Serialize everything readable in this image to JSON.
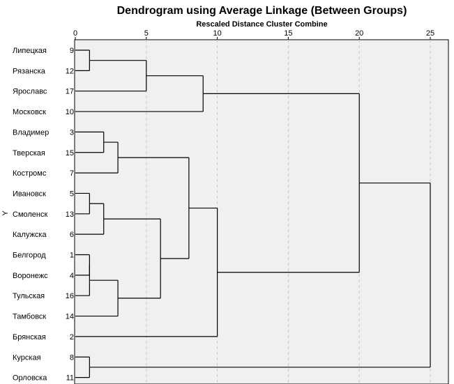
{
  "chart_data": {
    "type": "dendrogram",
    "title": "Dendrogram using Average Linkage (Between Groups)",
    "xlabel": "Rescaled Distance Cluster Combine",
    "ylabel": "Y",
    "xlim": [
      0,
      25
    ],
    "xticks": [
      0,
      5,
      10,
      15,
      20,
      25
    ],
    "grid": true,
    "background": "#f0f0f0",
    "leaves": [
      {
        "name": "Липецкая",
        "id": "9"
      },
      {
        "name": "Рязанска",
        "id": "12"
      },
      {
        "name": "Ярославс",
        "id": "17"
      },
      {
        "name": "Московск",
        "id": "10"
      },
      {
        "name": "Владимер",
        "id": "3"
      },
      {
        "name": "Тверская",
        "id": "15"
      },
      {
        "name": "Костромс",
        "id": "7"
      },
      {
        "name": "Ивановск",
        "id": "5"
      },
      {
        "name": "Смоленск",
        "id": "13"
      },
      {
        "name": "Калужска",
        "id": "6"
      },
      {
        "name": "Белгород",
        "id": "1"
      },
      {
        "name": "Воронежс",
        "id": "4"
      },
      {
        "name": "Тульская",
        "id": "16"
      },
      {
        "name": "Тамбовск",
        "id": "14"
      },
      {
        "name": "Брянская",
        "id": "2"
      },
      {
        "name": "Курская",
        "id": "8"
      },
      {
        "name": "Орловска",
        "id": "11"
      }
    ],
    "merges": [
      {
        "children": [
          "L0",
          "L1"
        ],
        "distance": 1
      },
      {
        "children": [
          "N0",
          "L2"
        ],
        "distance": 5
      },
      {
        "children": [
          "N1",
          "L3"
        ],
        "distance": 9
      },
      {
        "children": [
          "L4",
          "L5"
        ],
        "distance": 2
      },
      {
        "children": [
          "N3",
          "L6"
        ],
        "distance": 3
      },
      {
        "children": [
          "L7",
          "L8"
        ],
        "distance": 1
      },
      {
        "children": [
          "N5",
          "L9"
        ],
        "distance": 2
      },
      {
        "children": [
          "L10",
          "L11"
        ],
        "distance": 1
      },
      {
        "children": [
          "N7",
          "L12"
        ],
        "distance": 1
      },
      {
        "children": [
          "N8",
          "L13"
        ],
        "distance": 3
      },
      {
        "children": [
          "N6",
          "N9"
        ],
        "distance": 6
      },
      {
        "children": [
          "N4",
          "N10"
        ],
        "distance": 8
      },
      {
        "children": [
          "N11",
          "L14"
        ],
        "distance": 10
      },
      {
        "children": [
          "N2",
          "N12"
        ],
        "distance": 20
      },
      {
        "children": [
          "L15",
          "L16"
        ],
        "distance": 1
      },
      {
        "children": [
          "N13",
          "N14"
        ],
        "distance": 25
      }
    ]
  }
}
